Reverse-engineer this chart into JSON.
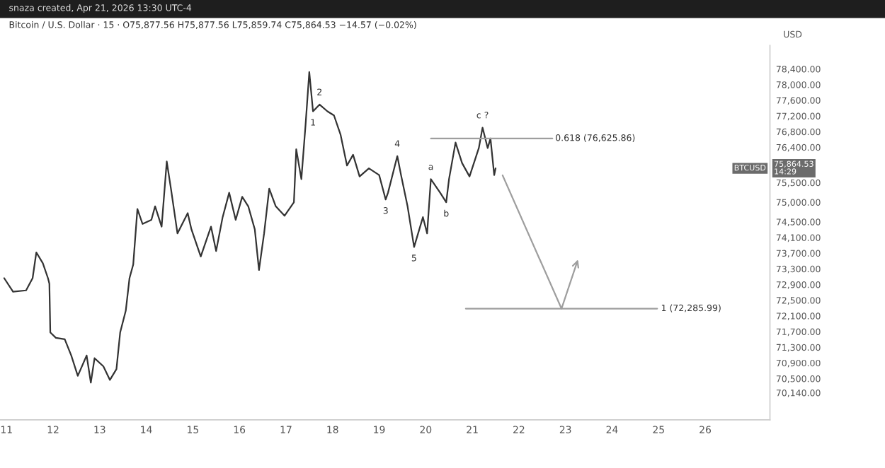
{
  "chart_data": {
    "type": "line",
    "title": "Bitcoin / U.S. Dollar · 15 · O75,877.56 H75,877.56 L75,859.74 C75,864.53 −14.57 (−0.02%)",
    "subtitle": "snaza created, Apr 21, 2026 13:30 UTC-4",
    "ylabel": "USD",
    "series": [
      {
        "color": "#333333",
        "x": [
          10.95,
          11.14,
          11.42,
          11.56,
          11.64,
          11.78,
          11.89,
          11.92,
          11.94,
          12.06,
          12.25,
          12.39,
          12.53,
          12.72,
          12.81,
          12.89,
          13.08,
          13.22,
          13.36,
          13.44,
          13.56,
          13.64,
          13.72,
          13.81,
          13.92,
          14.11,
          14.19,
          14.33,
          14.44,
          14.53,
          14.67,
          14.89,
          14.97,
          15.17,
          15.39,
          15.5,
          15.64,
          15.78,
          15.92,
          16.06,
          16.19,
          16.33,
          16.42,
          16.53,
          16.64,
          16.78,
          16.97,
          17.17,
          17.22,
          17.33,
          17.42,
          17.5,
          17.58,
          17.72,
          17.89,
          18.03,
          18.17,
          18.31,
          18.44,
          18.58,
          18.78,
          19.0,
          19.14,
          19.19,
          19.39,
          19.47,
          19.61,
          19.75,
          19.94,
          20.03,
          20.11,
          20.31,
          20.44,
          20.5,
          20.64,
          20.78,
          20.94,
          21.14,
          21.22,
          21.33,
          21.39,
          21.47,
          21.5
        ],
        "values": [
          73062,
          72716,
          72751,
          73062,
          73720,
          73443,
          73062,
          72924,
          71678,
          71540,
          71505,
          71090,
          70571,
          71090,
          70398,
          71021,
          70813,
          70467,
          70744,
          71678,
          72232,
          73062,
          73408,
          74827,
          74446,
          74550,
          74896,
          74377,
          76038,
          75346,
          74204,
          74723,
          74308,
          73616,
          74377,
          73754,
          74619,
          75242,
          74550,
          75138,
          74896,
          74308,
          73270,
          74204,
          75346,
          74896,
          74654,
          75000,
          76349,
          75588,
          76972,
          78321,
          77318,
          77491,
          77318,
          77214,
          76730,
          75934,
          76211,
          75657,
          75865,
          75692,
          75069,
          75242,
          76176,
          75692,
          74896,
          73858,
          74619,
          74204,
          75588,
          75242,
          74998,
          75588,
          76522,
          75999,
          75657,
          76382,
          76903,
          76382,
          76626,
          75692,
          75865
        ]
      },
      {
        "color": "#9e9e9e",
        "x": [
          20.11,
          22.72
        ],
        "values": [
          76625.86,
          76625.86
        ]
      },
      {
        "color": "#9e9e9e",
        "x": [
          20.86,
          24.97
        ],
        "values": [
          72285.99,
          72285.99
        ]
      }
    ],
    "annotations": [
      {
        "text": "0.618 (76,625.86)",
        "x": 22.78,
        "y": 76625.86
      },
      {
        "text": "1 (72,285.99)",
        "x": 25.05,
        "y": 72285.99
      },
      {
        "text": "1",
        "x": 17.58,
        "y": 77318
      },
      {
        "text": "2",
        "x": 17.72,
        "y": 77491
      },
      {
        "text": "3",
        "x": 19.14,
        "y": 75069
      },
      {
        "text": "4",
        "x": 19.39,
        "y": 76176
      },
      {
        "text": "5",
        "x": 19.75,
        "y": 73858
      },
      {
        "text": "a",
        "x": 20.11,
        "y": 75588
      },
      {
        "text": "b",
        "x": 20.44,
        "y": 74998
      },
      {
        "text": "c ?",
        "x": 21.22,
        "y": 76903
      },
      {
        "text": "BTCUSD",
        "y": 75864.53
      },
      {
        "text": "75,864.53\n14:29",
        "y": 75864.53
      }
    ],
    "xlim": [
      10.86,
      27.39
    ],
    "xticks": [
      11,
      12,
      13,
      14,
      15,
      16,
      17,
      18,
      19,
      20,
      21,
      22,
      23,
      24,
      25,
      26
    ],
    "ylim": [
      69450,
      79000
    ],
    "yticks": [
      {
        "value": 78400,
        "label": "78,400.00"
      },
      {
        "value": 78000,
        "label": "78,000.00"
      },
      {
        "value": 77600,
        "label": "77,600.00"
      },
      {
        "value": 77200,
        "label": "77,200.00"
      },
      {
        "value": 76800,
        "label": "76,800.00"
      },
      {
        "value": 76400,
        "label": "76,400.00"
      },
      {
        "value": 75500,
        "label": "75,500.00"
      },
      {
        "value": 75000,
        "label": "75,000.00"
      },
      {
        "value": 74500,
        "label": "74,500.00"
      },
      {
        "value": 74100,
        "label": "74,100.00"
      },
      {
        "value": 73700,
        "label": "73,700.00"
      },
      {
        "value": 73300,
        "label": "73,300.00"
      },
      {
        "value": 72900,
        "label": "72,900.00"
      },
      {
        "value": 72500,
        "label": "72,500.00"
      },
      {
        "value": 72100,
        "label": "72,100.00"
      },
      {
        "value": 71700,
        "label": "71,700.00"
      },
      {
        "value": 71300,
        "label": "71,300.00"
      },
      {
        "value": 70900,
        "label": "70,900.00"
      },
      {
        "value": 70500,
        "label": "70,500.00"
      },
      {
        "value": 70140,
        "label": "70,140.00"
      }
    ],
    "grid": false
  }
}
